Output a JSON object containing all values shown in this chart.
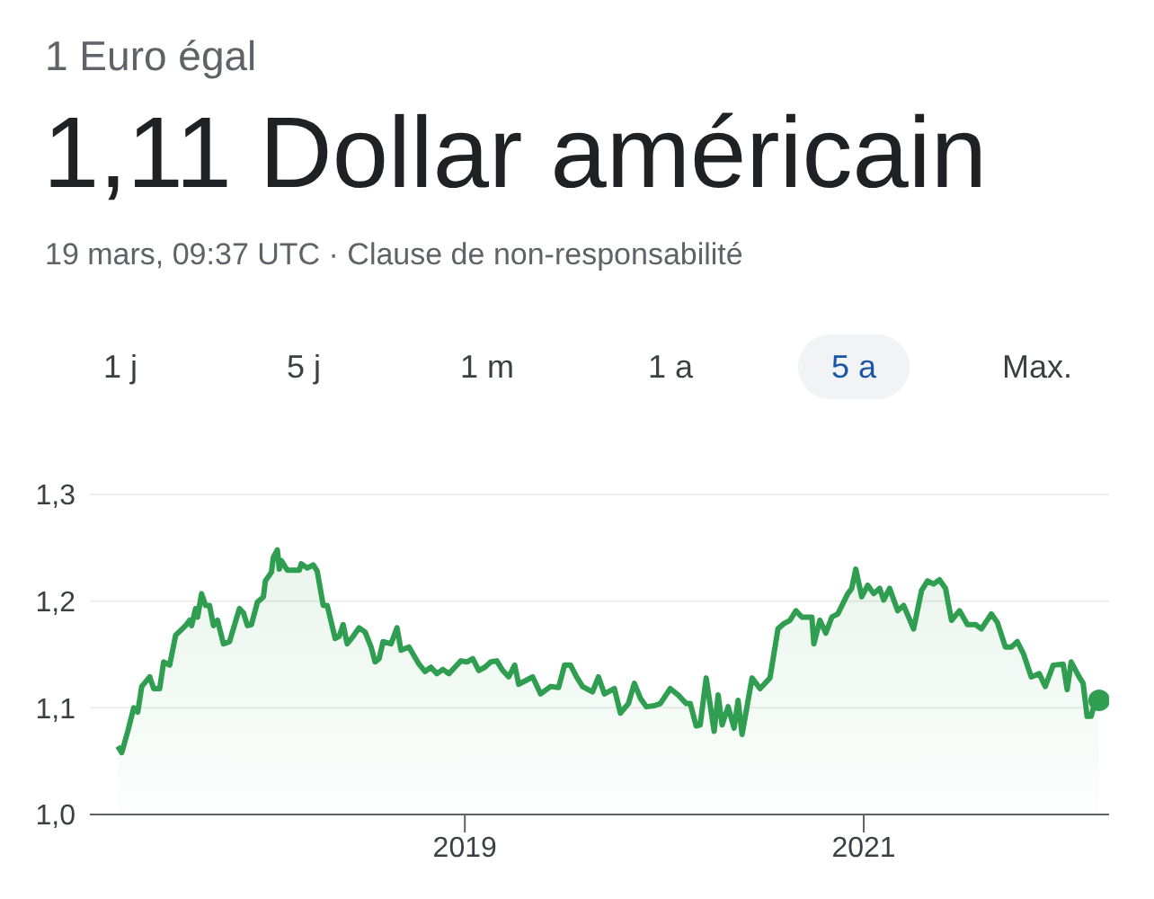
{
  "chart_data": {
    "type": "area",
    "title": "1,11 Dollar américain",
    "subtitle": "19 mars, 09:37 UTC · Clause de non-responsabilité",
    "annotations": [
      "1 Euro égal",
      "1 j",
      "5 j",
      "1 m",
      "1 a",
      "5 a",
      "Max."
    ],
    "x": [
      2017.26,
      2017.28,
      2017.31,
      2017.34,
      2017.36,
      2017.38,
      2017.42,
      2017.44,
      2017.47,
      2017.49,
      2017.52,
      2017.55,
      2017.6,
      2017.62,
      2017.63,
      2017.65,
      2017.66,
      2017.68,
      2017.7,
      2017.72,
      2017.74,
      2017.76,
      2017.79,
      2017.82,
      2017.87,
      2017.89,
      2017.91,
      2017.93,
      2017.96,
      2017.99,
      2018.0,
      2018.03,
      2018.04,
      2018.06,
      2018.07,
      2018.08,
      2018.11,
      2018.17,
      2018.18,
      2018.21,
      2018.24,
      2018.26,
      2018.29,
      2018.31,
      2018.35,
      2018.37,
      2018.39,
      2018.41,
      2018.44,
      2018.47,
      2018.5,
      2018.53,
      2018.55,
      2018.57,
      2018.59,
      2018.63,
      2018.66,
      2018.68,
      2018.72,
      2018.77,
      2018.8,
      2018.83,
      2018.86,
      2018.89,
      2018.92,
      2018.95,
      2018.98,
      2019.01,
      2019.04,
      2019.07,
      2019.1,
      2019.13,
      2019.16,
      2019.19,
      2019.22,
      2019.25,
      2019.27,
      2019.31,
      2019.34,
      2019.38,
      2019.43,
      2019.47,
      2019.5,
      2019.53,
      2019.56,
      2019.59,
      2019.64,
      2019.67,
      2019.7,
      2019.75,
      2019.78,
      2019.82,
      2019.85,
      2019.88,
      2019.91,
      2019.95,
      2019.98,
      2020.03,
      2020.07,
      2020.11,
      2020.13,
      2020.16,
      2020.18,
      2020.21,
      2020.25,
      2020.27,
      2020.29,
      2020.32,
      2020.35,
      2020.37,
      2020.39,
      2020.44,
      2020.48,
      2020.53,
      2020.57,
      2020.6,
      2020.63,
      2020.66,
      2020.69,
      2020.74,
      2020.75,
      2020.78,
      2020.81,
      2020.84,
      2020.87,
      2020.92,
      2020.94,
      2020.96,
      2020.99,
      2021.02,
      2021.05,
      2021.08,
      2021.1,
      2021.13,
      2021.17,
      2021.2,
      2021.25,
      2021.29,
      2021.32,
      2021.35,
      2021.38,
      2021.41,
      2021.44,
      2021.48,
      2021.52,
      2021.56,
      2021.59,
      2021.64,
      2021.67,
      2021.71,
      2021.74,
      2021.77,
      2021.8,
      2021.84,
      2021.88,
      2021.91,
      2021.95,
      2022.0,
      2022.02,
      2022.04,
      2022.08,
      2022.1,
      2022.12,
      2022.14,
      2022.16,
      2022.18
    ],
    "series": [
      {
        "color": "#2f9e50",
        "values": [
          1.064,
          1.058,
          1.078,
          1.1,
          1.096,
          1.12,
          1.129,
          1.118,
          1.118,
          1.143,
          1.14,
          1.168,
          1.177,
          1.182,
          1.177,
          1.193,
          1.185,
          1.207,
          1.196,
          1.196,
          1.177,
          1.182,
          1.16,
          1.162,
          1.193,
          1.189,
          1.177,
          1.178,
          1.199,
          1.204,
          1.219,
          1.227,
          1.241,
          1.248,
          1.23,
          1.238,
          1.229,
          1.229,
          1.235,
          1.231,
          1.234,
          1.228,
          1.196,
          1.196,
          1.165,
          1.167,
          1.178,
          1.16,
          1.167,
          1.175,
          1.171,
          1.157,
          1.143,
          1.146,
          1.162,
          1.16,
          1.175,
          1.154,
          1.157,
          1.141,
          1.134,
          1.138,
          1.132,
          1.136,
          1.132,
          1.138,
          1.144,
          1.143,
          1.146,
          1.135,
          1.138,
          1.143,
          1.144,
          1.135,
          1.129,
          1.14,
          1.122,
          1.126,
          1.129,
          1.113,
          1.12,
          1.119,
          1.14,
          1.14,
          1.129,
          1.12,
          1.115,
          1.129,
          1.113,
          1.118,
          1.095,
          1.104,
          1.123,
          1.109,
          1.101,
          1.102,
          1.104,
          1.118,
          1.112,
          1.104,
          1.104,
          1.083,
          1.084,
          1.128,
          1.078,
          1.112,
          1.084,
          1.101,
          1.081,
          1.107,
          1.075,
          1.128,
          1.118,
          1.128,
          1.174,
          1.179,
          1.182,
          1.191,
          1.185,
          1.185,
          1.16,
          1.182,
          1.17,
          1.185,
          1.188,
          1.207,
          1.212,
          1.23,
          1.204,
          1.215,
          1.207,
          1.212,
          1.201,
          1.212,
          1.191,
          1.196,
          1.174,
          1.21,
          1.219,
          1.216,
          1.22,
          1.212,
          1.182,
          1.191,
          1.178,
          1.178,
          1.174,
          1.188,
          1.18,
          1.157,
          1.157,
          1.162,
          1.151,
          1.129,
          1.132,
          1.12,
          1.14,
          1.141,
          1.117,
          1.143,
          1.129,
          1.123,
          1.092,
          1.092,
          1.106,
          1.107
        ]
      }
    ],
    "xlim": [
      2017.12,
      2022.23
    ],
    "xticks": [
      2019,
      2021
    ],
    "ylim": [
      1.0,
      1.3
    ],
    "yticks": [
      {
        "value": 1.0,
        "label": "1,0"
      },
      {
        "value": 1.1,
        "label": "1,1"
      },
      {
        "value": 1.2,
        "label": "1,2"
      },
      {
        "value": 1.3,
        "label": "1,3"
      }
    ],
    "grid": "y"
  }
}
